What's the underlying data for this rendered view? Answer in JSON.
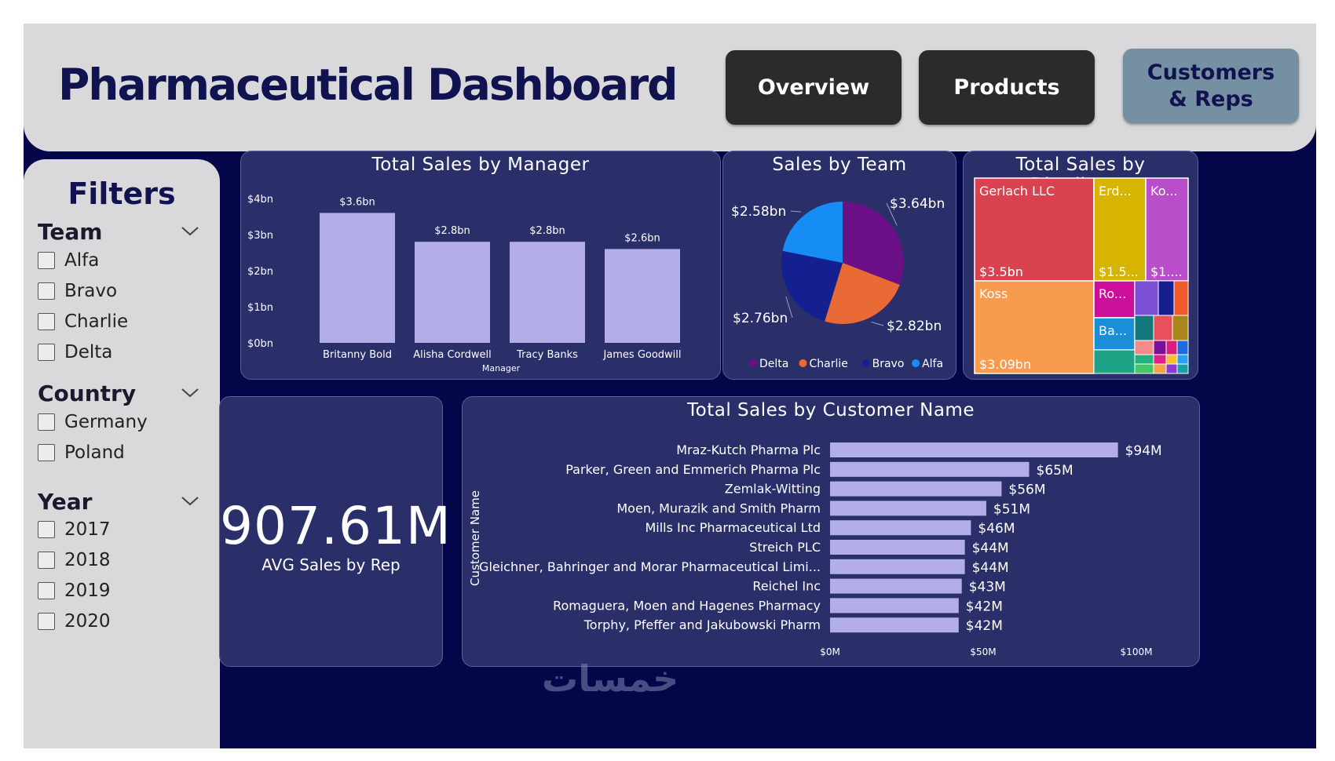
{
  "header": {
    "title": "Pharmaceutical Dashboard",
    "nav": [
      "Overview",
      "Products",
      "Customers & Reps"
    ]
  },
  "filters": {
    "title": "Filters",
    "groups": [
      {
        "label": "Team",
        "items": [
          "Alfa",
          "Bravo",
          "Charlie",
          "Delta"
        ]
      },
      {
        "label": "Country",
        "items": [
          "Germany",
          "Poland"
        ]
      },
      {
        "label": "Year",
        "items": [
          "2017",
          "2018",
          "2019",
          "2020"
        ]
      }
    ]
  },
  "kpi": {
    "value": "907.61M",
    "label": "AVG Sales by Rep"
  },
  "watermark": "خمسات",
  "colors": {
    "accent": "#b3aee8",
    "panel": "#2a2f6a",
    "background": "#05064a",
    "header": "#d9d9db",
    "title": "#10134f"
  },
  "chart_data": [
    {
      "type": "bar",
      "title": "Total Sales by Manager",
      "xlabel": "Manager",
      "ylabel": "",
      "categories": [
        "Britanny Bold",
        "Alisha Cordwell",
        "Tracy Banks",
        "James Goodwill"
      ],
      "values": [
        3.6,
        2.8,
        2.8,
        2.6
      ],
      "data_labels": [
        "$3.6bn",
        "$2.8bn",
        "$2.8bn",
        "$2.6bn"
      ],
      "ylim": [
        0,
        4
      ],
      "yticks": [
        "$0bn",
        "$1bn",
        "$2bn",
        "$3bn",
        "$4bn"
      ],
      "grid": false
    },
    {
      "type": "pie",
      "title": "Sales by Team",
      "slices": [
        {
          "name": "Delta",
          "value": 3.64,
          "label": "$3.64bn",
          "color": "#6b0f86"
        },
        {
          "name": "Charlie",
          "value": 2.82,
          "label": "$2.82bn",
          "color": "#ea6a36"
        },
        {
          "name": "Bravo",
          "value": 2.76,
          "label": "$2.76bn",
          "color": "#14208f"
        },
        {
          "name": "Alfa",
          "value": 2.58,
          "label": "$2.58bn",
          "color": "#168cf5"
        }
      ],
      "legend": "bottom"
    },
    {
      "type": "treemap",
      "title": "Total Sales by Distributor",
      "nodes": [
        {
          "name": "Gerlach LLC",
          "label": "$3.5bn",
          "color": "#d9434f"
        },
        {
          "name": "Erd...",
          "label": "$1.5...",
          "color": "#d6b400"
        },
        {
          "name": "Ko...",
          "label": "$1....",
          "color": "#b94fc8"
        },
        {
          "name": "Koss",
          "label": "$3.09bn",
          "color": "#f99b4e"
        },
        {
          "name": "Ro...",
          "label": "",
          "color": "#cc0f9a"
        },
        {
          "name": "Ba...",
          "label": "",
          "color": "#1a8fd8"
        }
      ]
    },
    {
      "type": "bar",
      "orientation": "horizontal",
      "title": "Total Sales by Customer Name",
      "ylabel": "Customer Name",
      "categories": [
        "Mraz-Kutch Pharma Plc",
        "Parker, Green and Emmerich Pharma Plc",
        "Zemlak-Witting",
        "Moen, Murazik and Smith Pharm",
        "Mills Inc Pharmaceutical Ltd",
        "Streich PLC",
        "Gleichner, Bahringer and Morar Pharmaceutical Limi...",
        "Reichel Inc",
        "Romaguera, Moen and Hagenes Pharmacy",
        "Torphy, Pfeffer and Jakubowski Pharm"
      ],
      "values": [
        94,
        65,
        56,
        51,
        46,
        44,
        44,
        43,
        42,
        42
      ],
      "data_labels": [
        "$94M",
        "$65M",
        "$56M",
        "$51M",
        "$46M",
        "$44M",
        "$44M",
        "$43M",
        "$42M",
        "$42M"
      ],
      "xlim": [
        0,
        100
      ],
      "xticks": [
        "$0M",
        "$50M",
        "$100M"
      ]
    }
  ]
}
